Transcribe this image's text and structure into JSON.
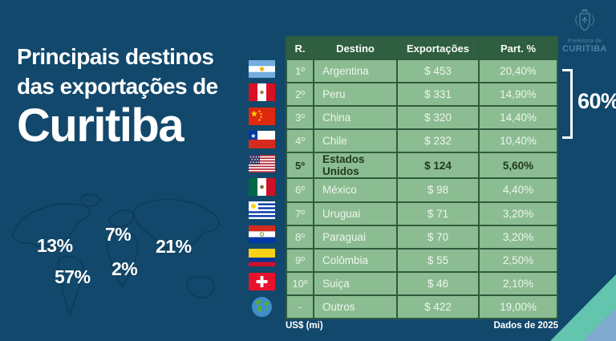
{
  "title": {
    "line1": "Principais destinos",
    "line2": "das exportações de",
    "line3": "Curitiba"
  },
  "logo": {
    "line1": "Prefeitura de",
    "line2": "CURITIBA"
  },
  "bracket": {
    "label": "60%"
  },
  "table": {
    "headers": [
      "R.",
      "Destino",
      "Exportações",
      "Part. %"
    ],
    "rows": [
      {
        "rank": "1º",
        "flag": "flag-argentina",
        "destino": "Argentina",
        "exportacoes": "$ 453",
        "part": "20,40%",
        "bold": false
      },
      {
        "rank": "2º",
        "flag": "flag-peru",
        "destino": "Peru",
        "exportacoes": "$ 331",
        "part": "14,90%",
        "bold": false
      },
      {
        "rank": "3º",
        "flag": "flag-china",
        "destino": "China",
        "exportacoes": "$ 320",
        "part": "14,40%",
        "bold": false
      },
      {
        "rank": "4º",
        "flag": "flag-chile",
        "destino": "Chile",
        "exportacoes": "$ 232",
        "part": "10,40%",
        "bold": false
      },
      {
        "rank": "5º",
        "flag": "flag-estados-unidos",
        "destino": "Estados Unidos",
        "exportacoes": "$ 124",
        "part": "5,60%",
        "bold": true
      },
      {
        "rank": "6º",
        "flag": "flag-mexico",
        "destino": "México",
        "exportacoes": "$ 98",
        "part": "4,40%",
        "bold": false
      },
      {
        "rank": "7º",
        "flag": "flag-uruguai",
        "destino": "Uruguai",
        "exportacoes": "$ 71",
        "part": "3,20%",
        "bold": false
      },
      {
        "rank": "8º",
        "flag": "flag-paraguai",
        "destino": "Paraguai",
        "exportacoes": "$ 70",
        "part": "3,20%",
        "bold": false
      },
      {
        "rank": "9º",
        "flag": "flag-colombia",
        "destino": "Colômbia",
        "exportacoes": "$ 55",
        "part": "2,50%",
        "bold": false
      },
      {
        "rank": "10º",
        "flag": "flag-suica",
        "destino": "Suiça",
        "exportacoes": "$ 46",
        "part": "2,10%",
        "bold": false
      },
      {
        "rank": "-",
        "flag": "globe-icon",
        "destino": "Outros",
        "exportacoes": "$ 422",
        "part": "19,00%",
        "bold": false
      }
    ],
    "footnote_left": "US$ (mi)",
    "footnote_right": "Dados de 2025"
  },
  "map_labels": [
    {
      "region": "north-america",
      "text": "13%"
    },
    {
      "region": "europe",
      "text": "7%"
    },
    {
      "region": "asia",
      "text": "21%"
    },
    {
      "region": "africa",
      "text": "2%"
    },
    {
      "region": "south-america",
      "text": "57%"
    }
  ],
  "colors": {
    "background": "#12486B",
    "table_header_green": "#2F5F40",
    "table_cell_green": "#8CBD92",
    "highlight_row_text": "#213A1E",
    "teal_corner": "#63C5AE",
    "blue_corner": "#7FA9CE",
    "logo_blue": "#4E80A6",
    "map_outline": "#0E3B59"
  },
  "chart_data": {
    "type": "table",
    "title": "Principais destinos das exportações de Curitiba",
    "unit": "US$ (mi)",
    "source_note": "Dados de 2025",
    "columns": [
      "R.",
      "Destino",
      "Exportações",
      "Part. %"
    ],
    "rows": [
      [
        "1º",
        "Argentina",
        453,
        "20,40%"
      ],
      [
        "2º",
        "Peru",
        331,
        "14,90%"
      ],
      [
        "3º",
        "China",
        320,
        "14,40%"
      ],
      [
        "4º",
        "Chile",
        232,
        "10,40%"
      ],
      [
        "5º",
        "Estados Unidos",
        124,
        "5,60%"
      ],
      [
        "6º",
        "México",
        98,
        "4,40%"
      ],
      [
        "7º",
        "Uruguai",
        71,
        "3,20%"
      ],
      [
        "8º",
        "Paraguai",
        70,
        "3,20%"
      ],
      [
        "9º",
        "Colômbia",
        55,
        "2,50%"
      ],
      [
        "10º",
        "Suiça",
        46,
        "2,10%"
      ],
      [
        "-",
        "Outros",
        422,
        "19,00%"
      ]
    ],
    "annotations": [
      {
        "label": "60%",
        "note": "bracket spanning the top 4 destinations (rows 1º–4º)"
      }
    ],
    "continent_shares": [
      {
        "region": "north-america",
        "value": "13%"
      },
      {
        "region": "europe",
        "value": "7%"
      },
      {
        "region": "asia",
        "value": "21%"
      },
      {
        "region": "africa",
        "value": "2%"
      },
      {
        "region": "south-america",
        "value": "57%"
      }
    ]
  }
}
